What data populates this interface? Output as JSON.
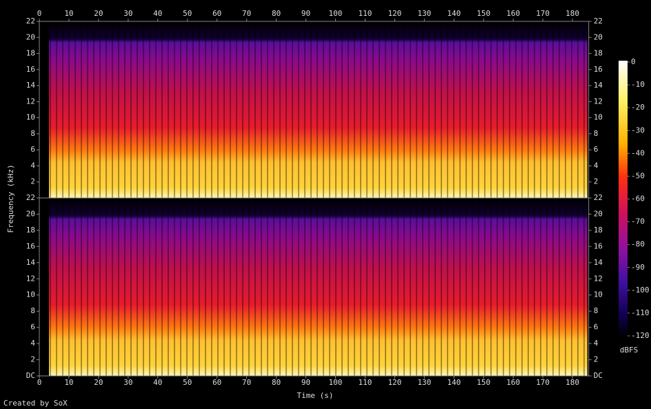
{
  "chart_data": {
    "type": "spectrogram",
    "x_label": "Time (s)",
    "y_label": "Frequency (kHz)",
    "xlim": [
      0,
      185.5
    ],
    "xticks": [
      0,
      10,
      20,
      30,
      40,
      50,
      60,
      70,
      80,
      90,
      100,
      110,
      120,
      130,
      140,
      150,
      160,
      170,
      180
    ],
    "panels": [
      {
        "ylim": [
          0,
          22
        ],
        "yticks": [
          2,
          4,
          6,
          8,
          10,
          12,
          14,
          16,
          18,
          20,
          22
        ]
      },
      {
        "ylim": [
          0,
          22
        ],
        "yticks": [
          {
            "value": 0,
            "label": "DC"
          },
          2,
          4,
          6,
          8,
          10,
          12,
          14,
          16,
          18,
          20,
          22
        ]
      }
    ],
    "colorbar": {
      "label": "dBFS",
      "lim": [
        -120,
        0
      ],
      "ticks": [
        0,
        -10,
        -20,
        -30,
        -40,
        -50,
        -60,
        -70,
        -80,
        -90,
        -100,
        -110,
        -120
      ]
    },
    "footer": "Created by SoX"
  }
}
